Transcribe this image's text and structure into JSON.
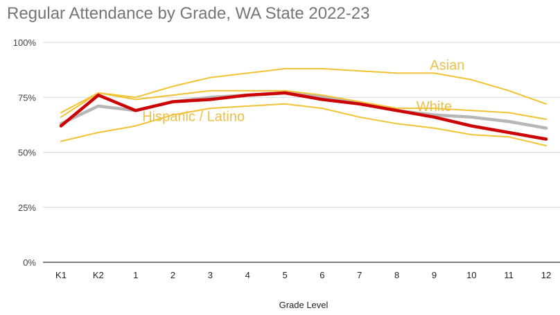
{
  "chart_data": {
    "type": "line",
    "title": "Regular Attendance by Grade, WA State 2022-23",
    "xlabel": "Grade Level",
    "ylabel": "",
    "categories": [
      "K1",
      "K2",
      "1",
      "2",
      "3",
      "4",
      "5",
      "6",
      "7",
      "8",
      "9",
      "10",
      "11",
      "12"
    ],
    "yticks": [
      "0%",
      "25%",
      "50%",
      "75%",
      "100%"
    ],
    "ylim": [
      0,
      100
    ],
    "grid": true,
    "legend": "none",
    "series": [
      {
        "name": "Asian",
        "color": "#f1c232",
        "values": [
          68,
          77,
          75,
          80,
          84,
          86,
          88,
          88,
          87,
          86,
          86,
          83,
          78,
          72
        ],
        "labeled": true
      },
      {
        "name": "White",
        "color": "#f1c232",
        "values": [
          66,
          77,
          74,
          76,
          78,
          78,
          78,
          76,
          73,
          70,
          70,
          69,
          68,
          65
        ],
        "labeled": true
      },
      {
        "name": "Hispanic / Latino",
        "color": "#f1c232",
        "values": [
          55,
          59,
          62,
          67,
          70,
          71,
          72,
          70,
          66,
          63,
          61,
          58,
          57,
          53
        ],
        "labeled": true
      },
      {
        "name": "",
        "color": "#b7b7b7",
        "values": [
          63,
          71,
          69,
          73,
          75,
          76,
          77,
          75,
          72,
          69,
          67,
          66,
          64,
          61
        ],
        "labeled": false
      },
      {
        "name": "",
        "color": "#cc0000",
        "values": [
          62,
          76,
          69,
          73,
          74,
          76,
          77,
          74,
          72,
          69,
          66,
          62,
          59,
          56
        ],
        "labeled": false
      }
    ]
  }
}
